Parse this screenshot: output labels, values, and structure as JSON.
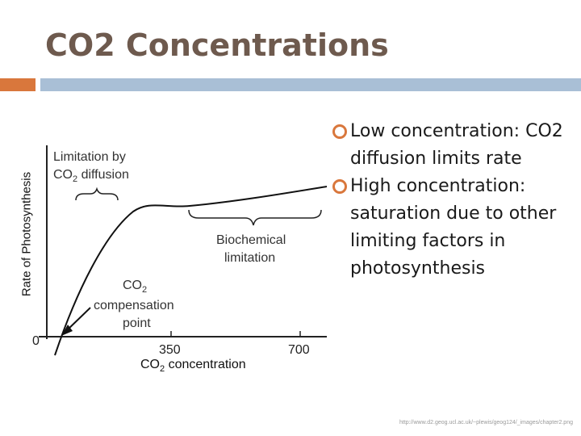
{
  "slide": {
    "title": "CO2 Concentrations",
    "accent_color": "#d9773c",
    "bar_color": "#a9bfd6",
    "title_color": "#6e5a4e"
  },
  "figure": {
    "ylabel": "Rate of Photosynthesis",
    "xlabel_main": "CO",
    "xlabel_sub": "2",
    "xlabel_rest": " concentration",
    "ticks": [
      "0",
      "350",
      "700"
    ],
    "annotations": {
      "diffusion_line1": "Limitation by",
      "diffusion_line2_main": "CO",
      "diffusion_line2_sub": "2",
      "diffusion_line2_rest": " diffusion",
      "biochemical_line1": "Biochemical",
      "biochemical_line2": "limitation",
      "compensation_line1_main": "CO",
      "compensation_line1_sub": "2",
      "compensation_line2": "compensation",
      "compensation_line3": "point"
    }
  },
  "bullets": [
    "Low concentration: CO2 diffusion limits rate",
    "High concentration: saturation due to other limiting factors in photosynthesis"
  ],
  "credit": "http://www.d2.geog.ucl.ac.uk/~plewis/geog124/_images/chapter2.png"
}
